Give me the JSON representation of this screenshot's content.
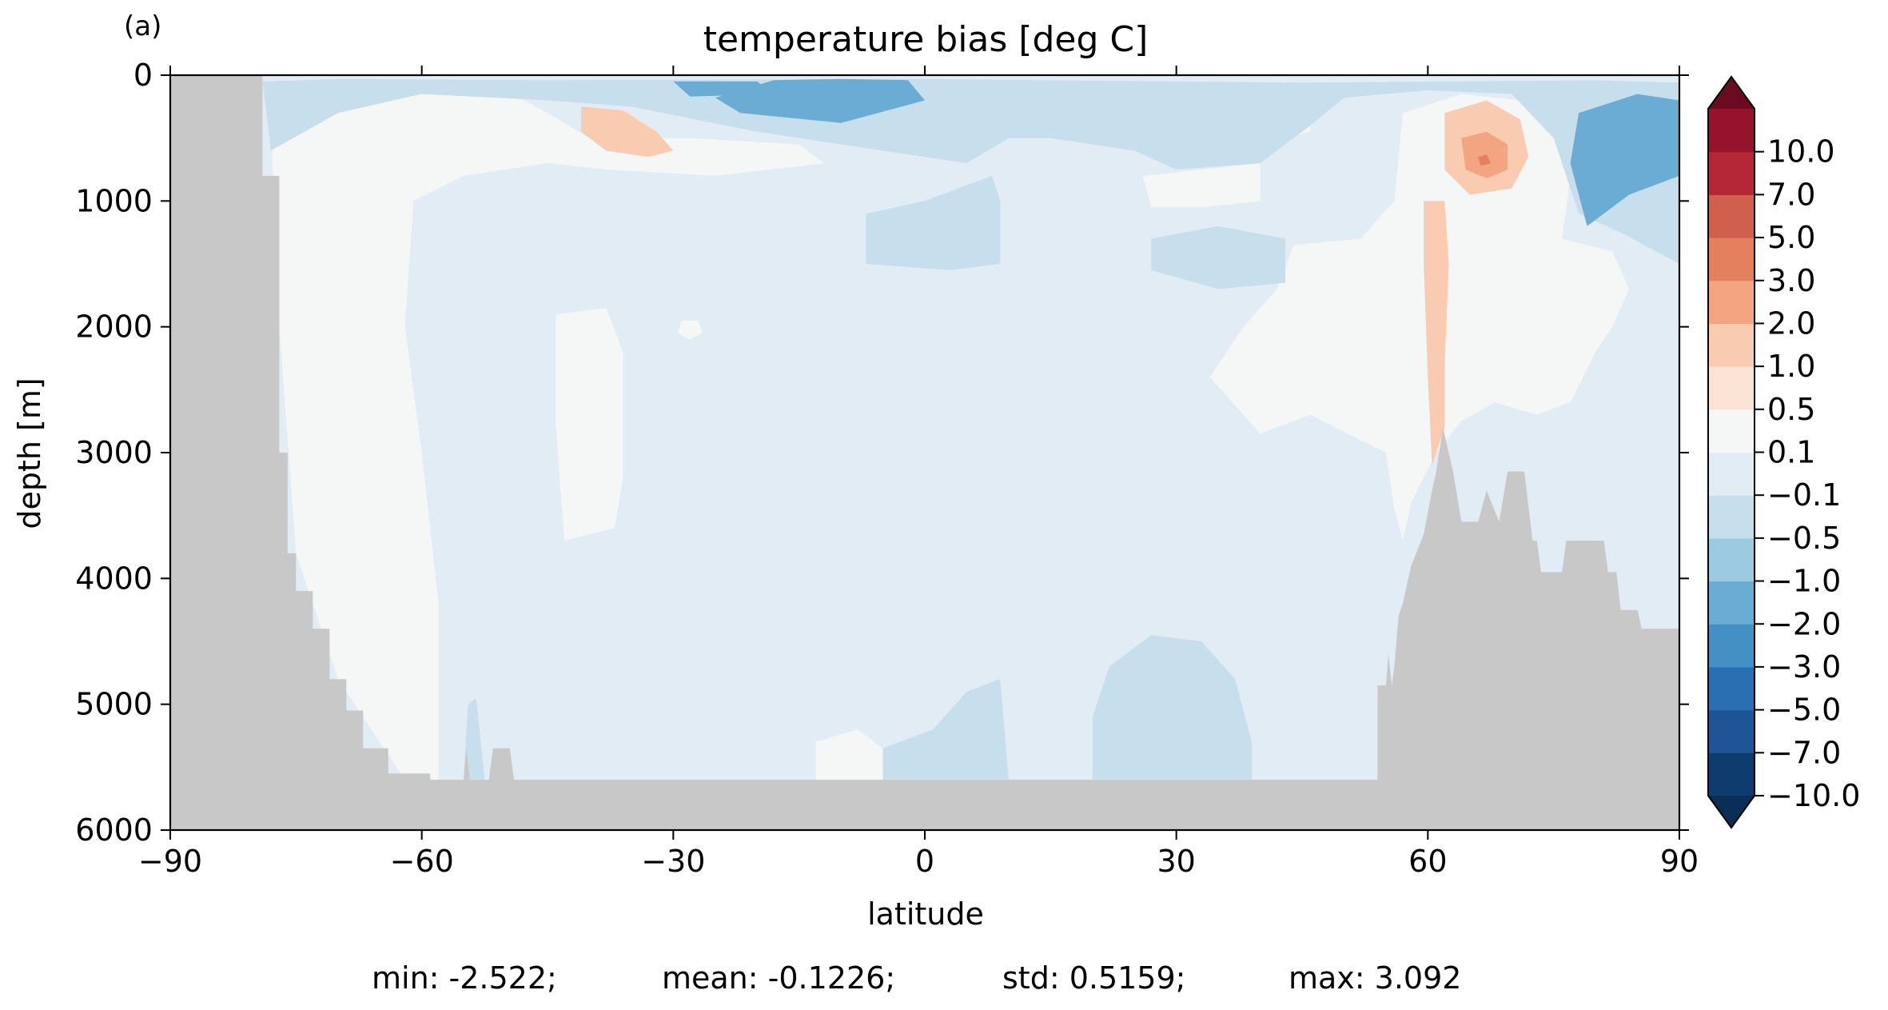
{
  "panel_label": "(a)",
  "chart_data": {
    "type": "heatmap",
    "subtype": "filled-contour depth-latitude section",
    "title": "temperature bias [deg C]",
    "xlabel": "latitude",
    "ylabel": "depth [m]",
    "xlim": [
      -90,
      90
    ],
    "ylim": [
      6000,
      0
    ],
    "y_inverted": true,
    "x_ticks": [
      -90,
      -60,
      -30,
      0,
      30,
      60,
      90
    ],
    "x_tick_labels": [
      "−90",
      "−60",
      "−30",
      "0",
      "30",
      "60",
      "90"
    ],
    "y_ticks": [
      0,
      1000,
      2000,
      3000,
      4000,
      5000,
      6000
    ],
    "y_tick_labels": [
      "0",
      "1000",
      "2000",
      "3000",
      "4000",
      "5000",
      "6000"
    ],
    "grid": false,
    "missing_color": "#c8c8c8",
    "colorbar": {
      "extend": "both",
      "levels": [
        -10.0,
        -7.0,
        -5.0,
        -3.0,
        -2.0,
        -1.0,
        -0.5,
        -0.1,
        0.1,
        0.5,
        1.0,
        2.0,
        3.0,
        5.0,
        7.0,
        10.0
      ],
      "level_labels": [
        "−10.0",
        "−7.0",
        "−5.0",
        "−3.0",
        "−2.0",
        "−1.0",
        "−0.5",
        "−0.1",
        "0.1",
        "0.5",
        "1.0",
        "2.0",
        "3.0",
        "5.0",
        "7.0",
        "10.0"
      ],
      "colors": [
        "#0f3c6e",
        "#1d5597",
        "#2b6fb3",
        "#4390c4",
        "#6aacd3",
        "#9ccae1",
        "#c7deed",
        "#e2ecf5",
        "#f5f6f6",
        "#fbe3d6",
        "#f9cbb1",
        "#f3a481",
        "#e5805f",
        "#d05f4e",
        "#b52736",
        "#95132d"
      ],
      "under_color": "#0b2e55",
      "over_color": "#6b0b22"
    },
    "bathymetry_profile": [
      [
        -90,
        0
      ],
      [
        -79,
        0
      ],
      [
        -79,
        800
      ],
      [
        -77,
        800
      ],
      [
        -77,
        3000
      ],
      [
        -76,
        3000
      ],
      [
        -76,
        3800
      ],
      [
        -75,
        3800
      ],
      [
        -75,
        4100
      ],
      [
        -73,
        4100
      ],
      [
        -73,
        4400
      ],
      [
        -71,
        4400
      ],
      [
        -71,
        4800
      ],
      [
        -69,
        4800
      ],
      [
        -69,
        5050
      ],
      [
        -67,
        5050
      ],
      [
        -67,
        5350
      ],
      [
        -64,
        5350
      ],
      [
        -64,
        5550
      ],
      [
        -59,
        5550
      ],
      [
        -59,
        5600
      ],
      [
        -55,
        5600
      ],
      [
        -54.7,
        5350
      ],
      [
        -54.3,
        5600
      ],
      [
        -52,
        5600
      ],
      [
        -51.5,
        5350
      ],
      [
        -49.5,
        5350
      ],
      [
        -49,
        5600
      ],
      [
        54,
        5600
      ],
      [
        54,
        4850
      ],
      [
        55,
        4850
      ],
      [
        55.3,
        4600
      ],
      [
        55.7,
        4850
      ],
      [
        56,
        4700
      ],
      [
        56.5,
        4300
      ],
      [
        57,
        4200
      ],
      [
        58,
        3900
      ],
      [
        59.5,
        3650
      ],
      [
        60.5,
        3300
      ],
      [
        61,
        3150
      ],
      [
        61.8,
        2800
      ],
      [
        63,
        3150
      ],
      [
        64,
        3550
      ],
      [
        66,
        3550
      ],
      [
        67,
        3300
      ],
      [
        68.5,
        3550
      ],
      [
        69.5,
        3150
      ],
      [
        71.5,
        3150
      ],
      [
        72.5,
        3700
      ],
      [
        73,
        3700
      ],
      [
        73.5,
        3950
      ],
      [
        76,
        3950
      ],
      [
        76.5,
        3700
      ],
      [
        81,
        3700
      ],
      [
        81.5,
        3950
      ],
      [
        82.5,
        3950
      ],
      [
        83,
        4250
      ],
      [
        85,
        4250
      ],
      [
        85.5,
        4400
      ],
      [
        90,
        4400
      ],
      [
        90,
        6000
      ],
      [
        -90,
        6000
      ]
    ],
    "anomaly_patches": [
      {
        "value": 0.3,
        "polygon": [
          [
            -78,
            400
          ],
          [
            -70,
            200
          ],
          [
            -60,
            150
          ],
          [
            -50,
            120
          ],
          [
            -45,
            300
          ],
          [
            -40,
            500
          ],
          [
            -35,
            500
          ],
          [
            -28,
            500
          ],
          [
            -15,
            550
          ],
          [
            -12,
            700
          ],
          [
            -25,
            800
          ],
          [
            -38,
            750
          ],
          [
            -45,
            700
          ],
          [
            -55,
            800
          ],
          [
            -61,
            1000
          ],
          [
            -62,
            2000
          ],
          [
            -60,
            3000
          ],
          [
            -58,
            4200
          ],
          [
            -58,
            5600
          ],
          [
            -62,
            5600
          ],
          [
            -70,
            4800
          ],
          [
            -75,
            3800
          ],
          [
            -77,
            2000
          ]
        ]
      },
      {
        "value": 0.3,
        "polygon": [
          [
            -44,
            1900
          ],
          [
            -38,
            1850
          ],
          [
            -36,
            2200
          ],
          [
            -36,
            3200
          ],
          [
            -37,
            3600
          ],
          [
            -43,
            3700
          ],
          [
            -44,
            2800
          ]
        ]
      },
      {
        "value": 0.3,
        "polygon": [
          [
            -29,
            1950
          ],
          [
            -27,
            1950
          ],
          [
            -26.5,
            2050
          ],
          [
            -28,
            2100
          ],
          [
            -29.5,
            2050
          ]
        ]
      },
      {
        "value": 0.3,
        "polygon": [
          [
            -13,
            5300
          ],
          [
            -8,
            5200
          ],
          [
            -5,
            5350
          ],
          [
            -5,
            5600
          ],
          [
            -13,
            5600
          ]
        ]
      },
      {
        "value": 0.3,
        "polygon": [
          [
            26,
            800
          ],
          [
            33,
            750
          ],
          [
            40,
            700
          ],
          [
            40,
            1000
          ],
          [
            33,
            1050
          ],
          [
            27,
            1050
          ]
        ]
      },
      {
        "value": 0.3,
        "polygon": [
          [
            36,
            150
          ],
          [
            43,
            50
          ],
          [
            46,
            200
          ],
          [
            46,
            450
          ],
          [
            40,
            550
          ],
          [
            35,
            450
          ]
        ]
      },
      {
        "value": 0.3,
        "polygon": [
          [
            44,
            1350
          ],
          [
            52,
            1300
          ],
          [
            56,
            1000
          ],
          [
            57,
            300
          ],
          [
            64,
            150
          ],
          [
            71,
            200
          ],
          [
            75,
            350
          ],
          [
            77,
            800
          ],
          [
            76,
            1300
          ],
          [
            82,
            1400
          ],
          [
            84,
            1700
          ],
          [
            82,
            2000
          ],
          [
            80,
            2200
          ],
          [
            77,
            2600
          ],
          [
            73,
            2700
          ],
          [
            68,
            2600
          ],
          [
            64,
            2750
          ],
          [
            61,
            3000
          ],
          [
            58,
            3400
          ],
          [
            57,
            3700
          ],
          [
            56,
            3450
          ],
          [
            55,
            3000
          ],
          [
            46,
            2700
          ],
          [
            40,
            2850
          ],
          [
            34,
            2400
          ],
          [
            38,
            2000
          ],
          [
            42,
            1700
          ]
        ]
      },
      {
        "value": 1.5,
        "polygon": [
          [
            -41,
            250
          ],
          [
            -36,
            280
          ],
          [
            -32,
            450
          ],
          [
            -30,
            600
          ],
          [
            -33,
            650
          ],
          [
            -38,
            600
          ],
          [
            -41,
            450
          ]
        ]
      },
      {
        "value": 1.5,
        "polygon": [
          [
            59.5,
            1000
          ],
          [
            62,
            1000
          ],
          [
            62.5,
            1500
          ],
          [
            62,
            2300
          ],
          [
            62,
            2800
          ],
          [
            60.5,
            3100
          ],
          [
            60,
            2400
          ],
          [
            59.5,
            1500
          ]
        ]
      },
      {
        "value": 1.5,
        "polygon": [
          [
            62,
            300
          ],
          [
            67,
            200
          ],
          [
            71,
            350
          ],
          [
            72,
            650
          ],
          [
            70,
            900
          ],
          [
            65,
            950
          ],
          [
            62,
            750
          ]
        ]
      },
      {
        "value": 2.5,
        "polygon": [
          [
            64,
            500
          ],
          [
            67,
            450
          ],
          [
            69.5,
            550
          ],
          [
            69.5,
            750
          ],
          [
            67,
            820
          ],
          [
            64.5,
            750
          ]
        ]
      },
      {
        "value": 4,
        "polygon": [
          [
            66,
            650
          ],
          [
            67,
            630
          ],
          [
            67.5,
            700
          ],
          [
            66.3,
            720
          ]
        ]
      },
      {
        "value": -0.3,
        "polygon": [
          [
            -79,
            50
          ],
          [
            -70,
            30
          ],
          [
            -45,
            40
          ],
          [
            0,
            30
          ],
          [
            45,
            60
          ],
          [
            80,
            40
          ],
          [
            90,
            60
          ],
          [
            90,
            1500
          ],
          [
            83,
            1250
          ],
          [
            78,
            1100
          ],
          [
            75,
            500
          ],
          [
            70,
            150
          ],
          [
            60,
            120
          ],
          [
            50,
            180
          ],
          [
            46,
            400
          ],
          [
            40,
            700
          ],
          [
            30,
            750
          ],
          [
            25,
            600
          ],
          [
            15,
            500
          ],
          [
            10,
            500
          ],
          [
            5,
            700
          ],
          [
            0,
            650
          ],
          [
            -10,
            550
          ],
          [
            -20,
            450
          ],
          [
            -35,
            250
          ],
          [
            -45,
            200
          ],
          [
            -60,
            150
          ],
          [
            -70,
            300
          ],
          [
            -78,
            600
          ]
        ]
      },
      {
        "value": -0.3,
        "polygon": [
          [
            -7,
            1100
          ],
          [
            0,
            1000
          ],
          [
            8,
            800
          ],
          [
            9,
            1000
          ],
          [
            9,
            1500
          ],
          [
            3,
            1550
          ],
          [
            -7,
            1500
          ]
        ]
      },
      {
        "value": -0.3,
        "polygon": [
          [
            27,
            1300
          ],
          [
            35,
            1200
          ],
          [
            43,
            1300
          ],
          [
            43,
            1650
          ],
          [
            35,
            1700
          ],
          [
            27,
            1550
          ]
        ]
      },
      {
        "value": -0.3,
        "polygon": [
          [
            -5,
            5350
          ],
          [
            1,
            5200
          ],
          [
            5,
            4900
          ],
          [
            9,
            4800
          ],
          [
            10,
            5600
          ],
          [
            -5,
            5600
          ]
        ]
      },
      {
        "value": -0.3,
        "polygon": [
          [
            22,
            4700
          ],
          [
            27,
            4450
          ],
          [
            33,
            4500
          ],
          [
            37,
            4800
          ],
          [
            39,
            5300
          ],
          [
            39,
            5600
          ],
          [
            20,
            5600
          ],
          [
            20,
            5100
          ]
        ]
      },
      {
        "value": -0.3,
        "polygon": [
          [
            -54.5,
            5000
          ],
          [
            -53.5,
            4950
          ],
          [
            -52.5,
            5600
          ],
          [
            -55,
            5600
          ]
        ]
      },
      {
        "value": -1.5,
        "polygon": [
          [
            -18,
            40
          ],
          [
            -10,
            30
          ],
          [
            -2,
            40
          ],
          [
            0,
            200
          ],
          [
            -10,
            380
          ],
          [
            -22,
            300
          ],
          [
            -25,
            180
          ]
        ]
      },
      {
        "value": -1.5,
        "polygon": [
          [
            78,
            300
          ],
          [
            85,
            150
          ],
          [
            90,
            200
          ],
          [
            90,
            800
          ],
          [
            84,
            950
          ],
          [
            79,
            1200
          ],
          [
            77,
            700
          ]
        ]
      },
      {
        "value": -1.5,
        "polygon": [
          [
            -30,
            50
          ],
          [
            -20,
            50
          ],
          [
            -18,
            150
          ],
          [
            -28,
            170
          ]
        ]
      }
    ]
  },
  "stats": {
    "min": "min: -2.522;",
    "mean": "mean: -0.1226;",
    "std": "std: 0.5159;",
    "max": "max: 3.092"
  }
}
